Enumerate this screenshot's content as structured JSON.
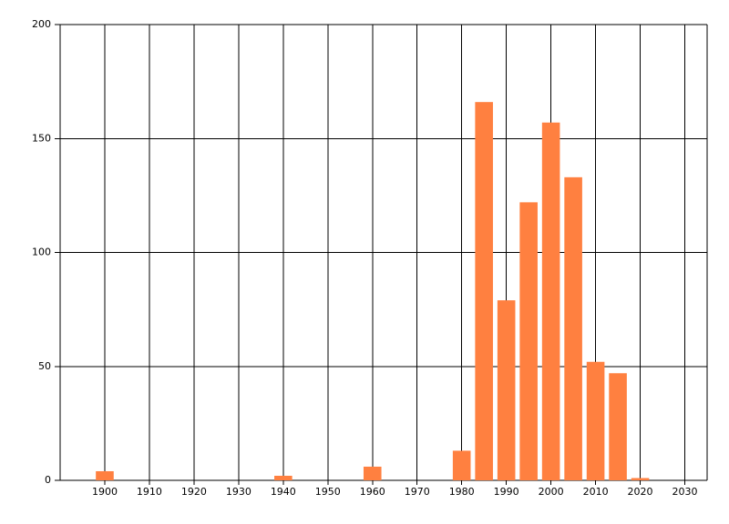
{
  "chart_data": {
    "type": "bar",
    "x": [
      1900,
      1940,
      1960,
      1980,
      1985,
      1990,
      1995,
      2000,
      2005,
      2010,
      2015,
      2020
    ],
    "values": [
      4,
      2,
      6,
      13,
      166,
      79,
      122,
      157,
      133,
      52,
      47,
      1
    ],
    "color": "#ff8040",
    "xlim": [
      1890,
      2035
    ],
    "xticks": [
      1900,
      1910,
      1920,
      1930,
      1940,
      1950,
      1960,
      1970,
      1980,
      1990,
      2000,
      2010,
      2020,
      2030
    ],
    "ylim": [
      0,
      200
    ],
    "yticks": [
      0,
      50,
      100,
      150,
      200
    ],
    "grid": true
  }
}
